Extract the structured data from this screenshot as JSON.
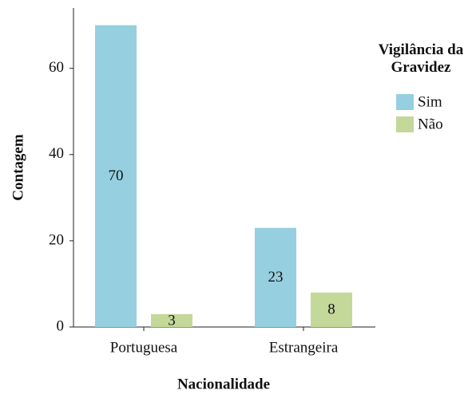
{
  "chart_data": {
    "type": "bar",
    "categories": [
      "Portuguesa",
      "Estrangeira"
    ],
    "series": [
      {
        "name": "Sim",
        "color": "#96cfe0",
        "values": [
          70,
          23
        ]
      },
      {
        "name": "Não",
        "color": "#c4d89a",
        "values": [
          3,
          8
        ]
      }
    ],
    "ylim": [
      0,
      74
    ],
    "yticks": [
      0,
      20,
      40,
      60
    ],
    "xlabel": "Nacionalidade",
    "ylabel": "Contagem",
    "legend_title": "Vigilância da Gravidez",
    "legend": "right"
  }
}
